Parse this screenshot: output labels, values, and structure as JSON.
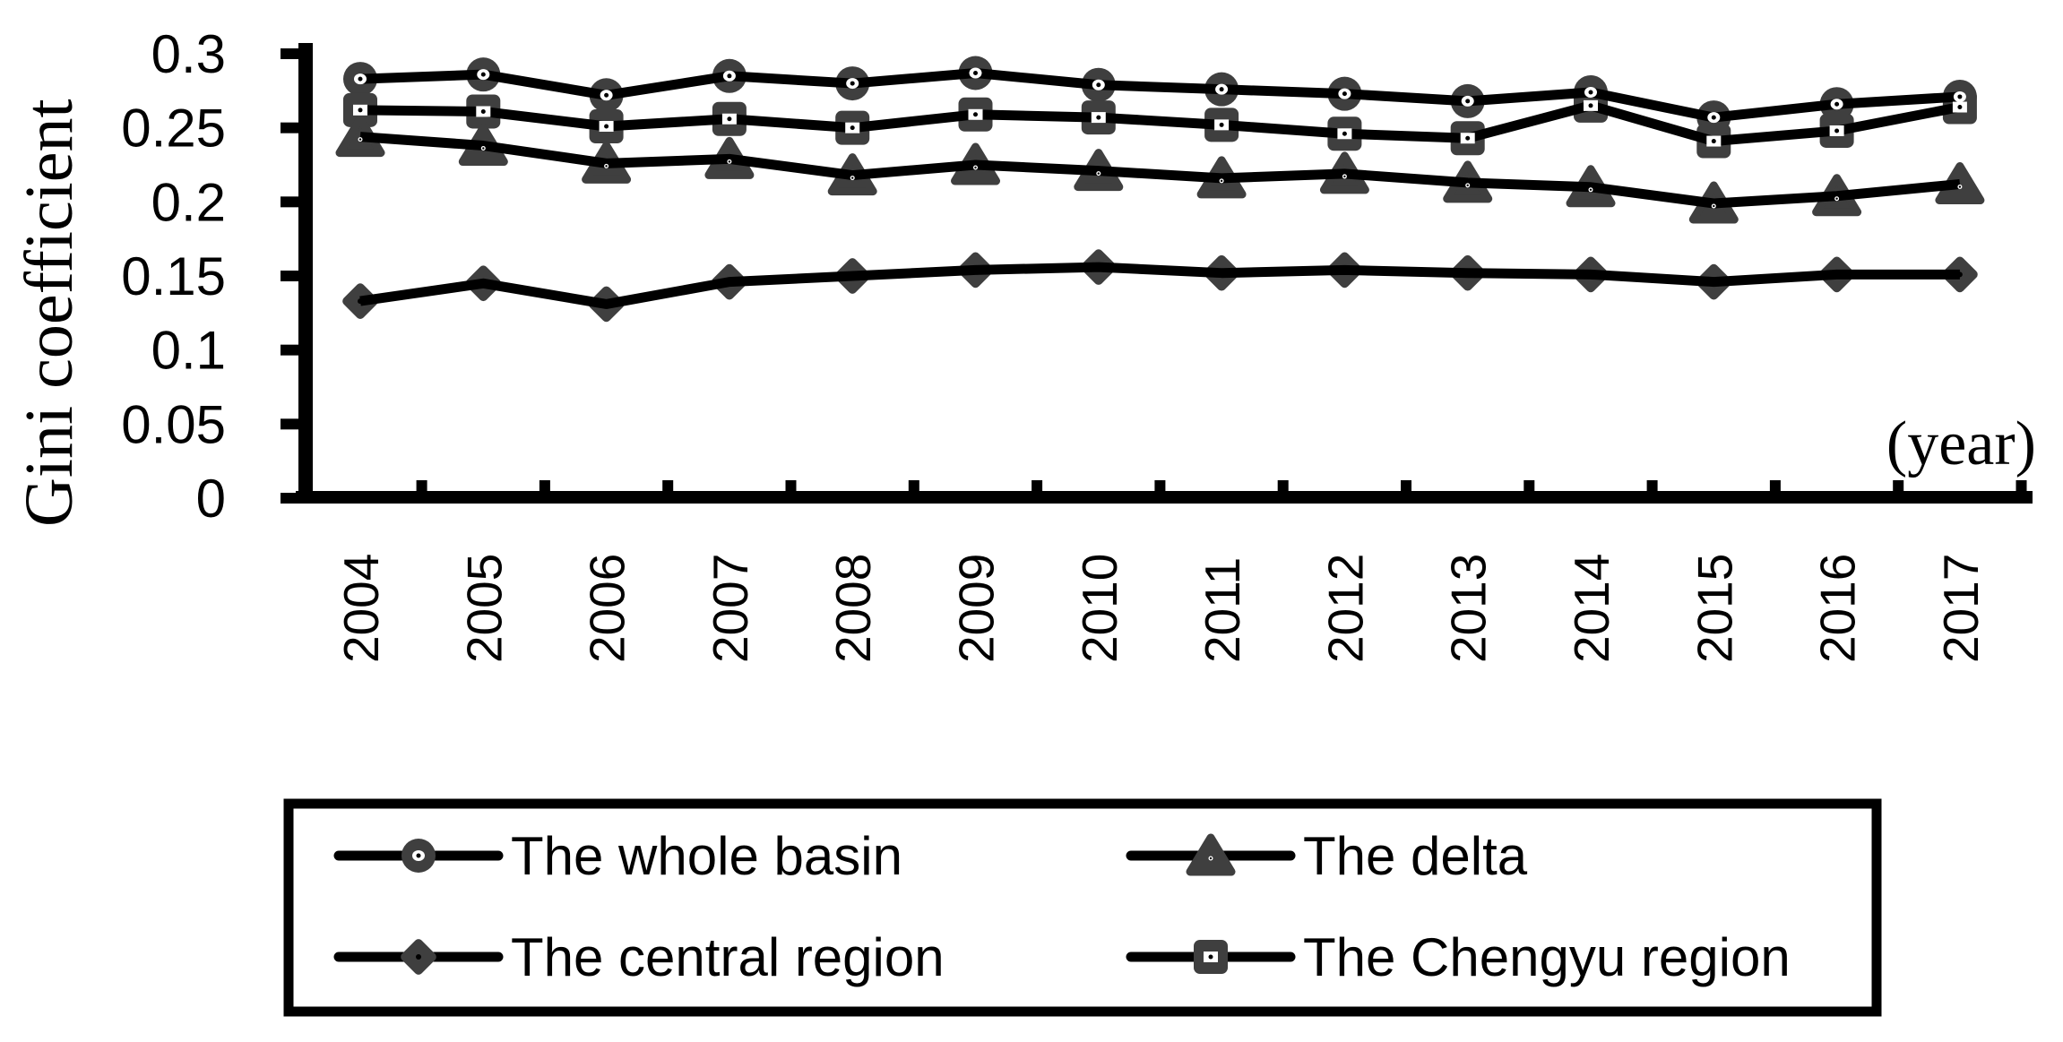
{
  "chart_data": {
    "type": "line",
    "title": "",
    "ylabel": "Gini coefficient",
    "xlabel": "(year)",
    "categories": [
      "2004",
      "2005",
      "2006",
      "2007",
      "2008",
      "2009",
      "2010",
      "2011",
      "2012",
      "2013",
      "2014",
      "2015",
      "2016",
      "2017"
    ],
    "series": [
      {
        "name": "The whole basin",
        "marker": "circle",
        "values": [
          0.283,
          0.286,
          0.272,
          0.285,
          0.28,
          0.287,
          0.279,
          0.276,
          0.273,
          0.268,
          0.274,
          0.257,
          0.266,
          0.271
        ]
      },
      {
        "name": "The Chengyu region",
        "marker": "square",
        "values": [
          0.262,
          0.261,
          0.251,
          0.256,
          0.25,
          0.259,
          0.257,
          0.252,
          0.246,
          0.243,
          0.265,
          0.241,
          0.248,
          0.264
        ]
      },
      {
        "name": "The delta",
        "marker": "triangle",
        "values": [
          0.244,
          0.238,
          0.226,
          0.229,
          0.218,
          0.225,
          0.221,
          0.216,
          0.219,
          0.213,
          0.21,
          0.199,
          0.204,
          0.212
        ]
      },
      {
        "name": "The central region",
        "marker": "diamond",
        "values": [
          0.133,
          0.145,
          0.131,
          0.146,
          0.15,
          0.154,
          0.156,
          0.152,
          0.154,
          0.152,
          0.151,
          0.146,
          0.151,
          0.151
        ]
      }
    ],
    "ylim": [
      0,
      0.3
    ],
    "y_ticks": [
      0,
      0.05,
      0.1,
      0.15,
      0.2,
      0.25,
      0.3
    ],
    "y_tick_labels": [
      "0",
      "0.05",
      "0.1",
      "0.15",
      "0.2",
      "0.25",
      "0.3"
    ],
    "grid": false,
    "legend_position": "bottom-box",
    "colors": {
      "line": "#000000",
      "marker_fill": "#3f3f3f",
      "text": "#000000",
      "background": "#ffffff"
    }
  },
  "legend": {
    "items": [
      {
        "label": "The whole basin",
        "marker": "circle",
        "row": 0,
        "col": 0
      },
      {
        "label": "The delta",
        "marker": "triangle",
        "row": 0,
        "col": 1
      },
      {
        "label": "The central region",
        "marker": "diamond",
        "row": 1,
        "col": 0
      },
      {
        "label": "The Chengyu region",
        "marker": "square",
        "row": 1,
        "col": 1
      }
    ]
  }
}
